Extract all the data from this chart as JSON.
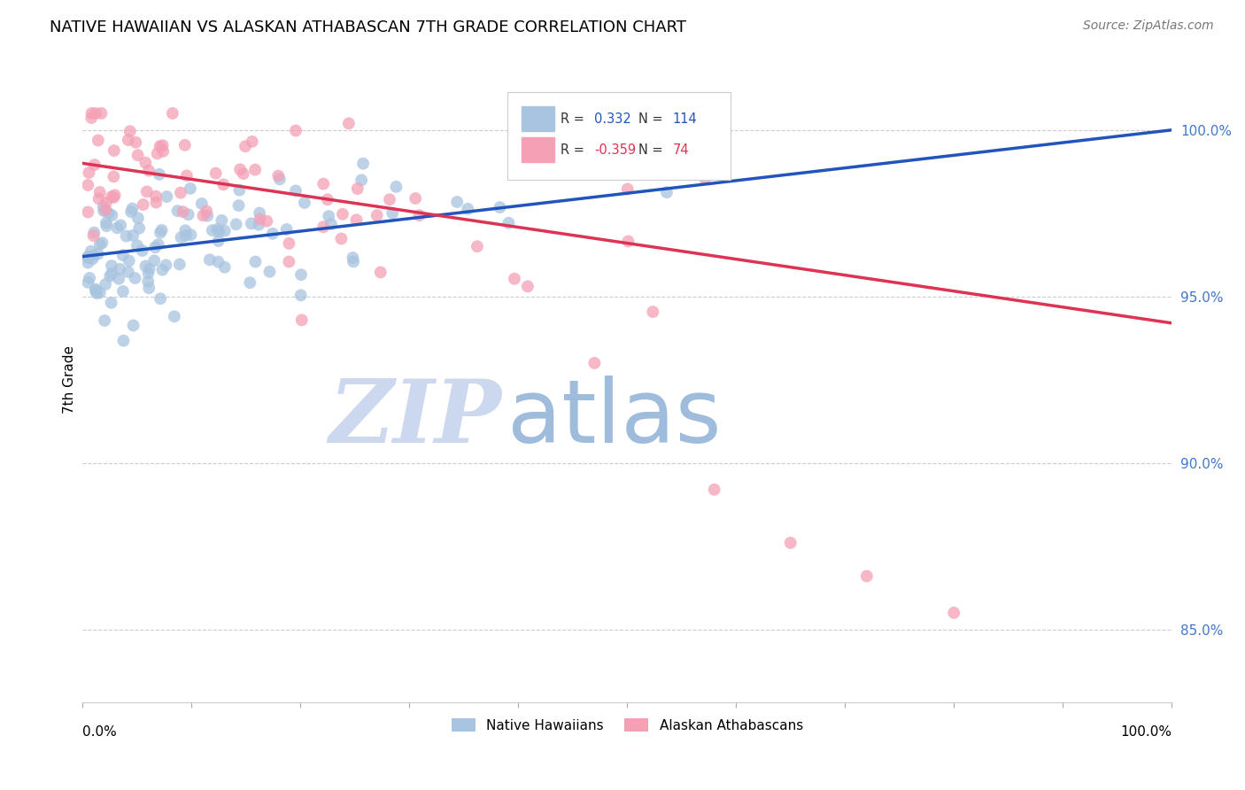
{
  "title": "NATIVE HAWAIIAN VS ALASKAN ATHABASCAN 7TH GRADE CORRELATION CHART",
  "source": "Source: ZipAtlas.com",
  "ylabel": "7th Grade",
  "r_blue": 0.332,
  "n_blue": 114,
  "r_pink": -0.359,
  "n_pink": 74,
  "blue_color": "#a8c4e0",
  "pink_color": "#f4a0b5",
  "blue_line_color": "#2255bb",
  "pink_line_color": "#dd3355",
  "legend_blue_fill": "#a8c4e0",
  "legend_pink_fill": "#f4a0b5",
  "ytick_labels": [
    "85.0%",
    "90.0%",
    "95.0%",
    "100.0%"
  ],
  "ytick_values": [
    0.85,
    0.9,
    0.95,
    1.0
  ],
  "xlim": [
    0.0,
    1.0
  ],
  "ylim": [
    0.828,
    1.022
  ],
  "blue_line_x": [
    0.0,
    1.0
  ],
  "blue_line_y": [
    0.962,
    1.0
  ],
  "pink_line_x": [
    0.0,
    1.0
  ],
  "pink_line_y": [
    0.99,
    0.942
  ],
  "watermark_zip": "ZIP",
  "watermark_atlas": "atlas",
  "watermark_zip_color": "#ccd8ee",
  "watermark_atlas_color": "#a0bcdc",
  "background_color": "#ffffff",
  "grid_color": "#cccccc",
  "seed": 12345
}
